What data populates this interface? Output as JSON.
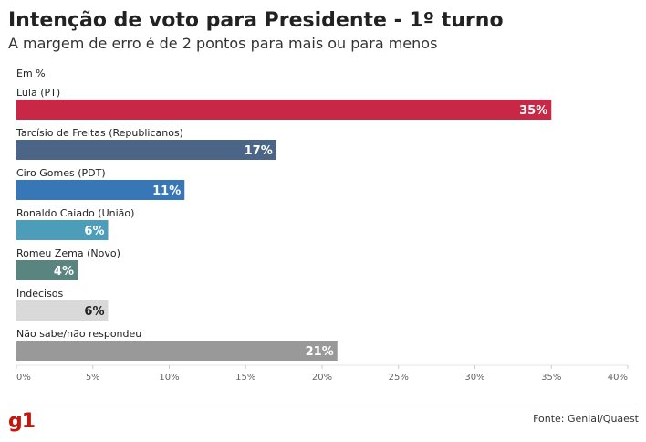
{
  "header": {
    "title": "Intenção de voto para Presidente - 1º turno",
    "subtitle": "A margem de erro é de 2 pontos para mais ou para menos"
  },
  "chart_data": {
    "type": "bar",
    "orientation": "horizontal",
    "unit_label": "Em %",
    "categories": [
      "Lula (PT)",
      "Tarcísio de Freitas (Republicanos)",
      "Ciro Gomes (PDT)",
      "Ronaldo Caiado (União)",
      "Romeu Zema (Novo)",
      "Indecisos",
      "Não sabe/não respondeu"
    ],
    "values": [
      35,
      17,
      11,
      6,
      4,
      6,
      21
    ],
    "value_labels": [
      "35%",
      "17%",
      "11%",
      "6%",
      "4%",
      "6%",
      "21%"
    ],
    "colors": [
      "#c82745",
      "#4a6585",
      "#3877b7",
      "#4b9dba",
      "#5a8480",
      "#d9d9d9",
      "#999999"
    ],
    "label_colors": [
      "#ffffff",
      "#ffffff",
      "#ffffff",
      "#ffffff",
      "#ffffff",
      "#222222",
      "#ffffff"
    ],
    "xlim": [
      0,
      40
    ],
    "xticks": [
      0,
      5,
      10,
      15,
      20,
      25,
      30,
      35,
      40
    ],
    "xtick_labels": [
      "0%",
      "5%",
      "10%",
      "15%",
      "20%",
      "25%",
      "30%",
      "35%",
      "40%"
    ],
    "grid": false
  },
  "footer": {
    "logo": "g1",
    "source": "Fonte: Genial/Quaest"
  }
}
